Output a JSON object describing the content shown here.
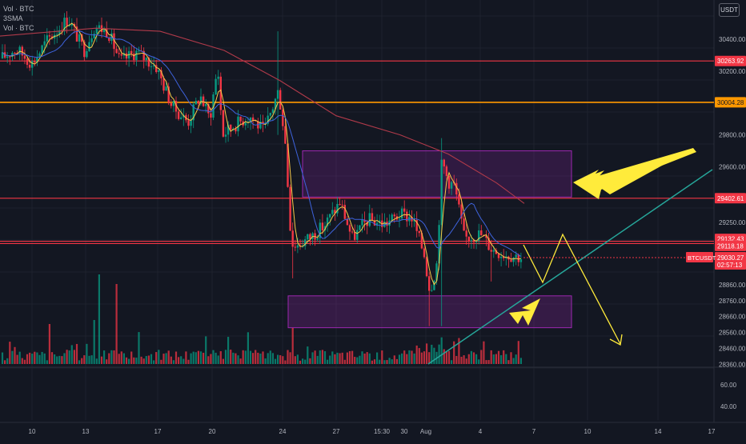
{
  "legend": {
    "items": [
      "Vol · BTC",
      "3SMA",
      "Vol · BTC"
    ]
  },
  "axis": {
    "currency": "USDT",
    "price_ticks": [
      {
        "v": 30400,
        "label": "30400.00"
      },
      {
        "v": 30200,
        "label": "30200.00"
      },
      {
        "v": 29800,
        "label": "29800.00"
      },
      {
        "v": 29600,
        "label": "29600.00"
      },
      {
        "v": 29250,
        "label": "29250.00"
      },
      {
        "v": 28860,
        "label": "28860.00"
      },
      {
        "v": 28760,
        "label": "28760.00"
      },
      {
        "v": 28660,
        "label": "28660.00"
      },
      {
        "v": 28560,
        "label": "28560.00"
      },
      {
        "v": 28460,
        "label": "28460.00"
      },
      {
        "v": 28360,
        "label": "28360.00"
      }
    ],
    "volume_ticks": [
      "60.00",
      "40.00"
    ],
    "time_ticks": [
      "10",
      "13",
      "17",
      "20",
      "24",
      "27",
      "15:30",
      "30",
      "Aug",
      "4",
      "7",
      "10",
      "14",
      "17"
    ]
  },
  "price_tags": [
    {
      "label": "30263.92",
      "color": "#f23645",
      "v": 30263.92
    },
    {
      "label": "30004.28",
      "color": "#ff9800",
      "v": 30004.28
    },
    {
      "label": "29402.61",
      "color": "#f23645",
      "v": 29402.61
    },
    {
      "label": "29132.43",
      "color": "#f23645",
      "v": 29132.43
    },
    {
      "label": "29118.18",
      "color": "#f23645",
      "v": 29118.18
    }
  ],
  "current": {
    "symbol": "BTCUSDT",
    "price": "29030.27",
    "countdown": "02:57:13",
    "v": 29030.27,
    "color": "#f23645"
  },
  "colors": {
    "up": "#089981",
    "down": "#f23645",
    "sma_fast": "#f7c948",
    "sma_mid": "#3e63dd",
    "sma_slow": "#b03a4a",
    "zone": "#9c27b0",
    "arrow": "#ffeb3b",
    "trend": "#26a69a"
  },
  "chart_data": {
    "type": "candlestick",
    "symbol": "BTCUSDT",
    "quote": "USDT",
    "y_range": [
      28300,
      30530
    ],
    "horizontal_levels": [
      30263.92,
      30004.28,
      29402.61,
      29132.43,
      29118.18
    ],
    "zones": [
      {
        "from": [
          29410,
          29700
        ]
      },
      {
        "from": [
          28590,
          28790
        ]
      }
    ],
    "last_price": 29030.27
  }
}
